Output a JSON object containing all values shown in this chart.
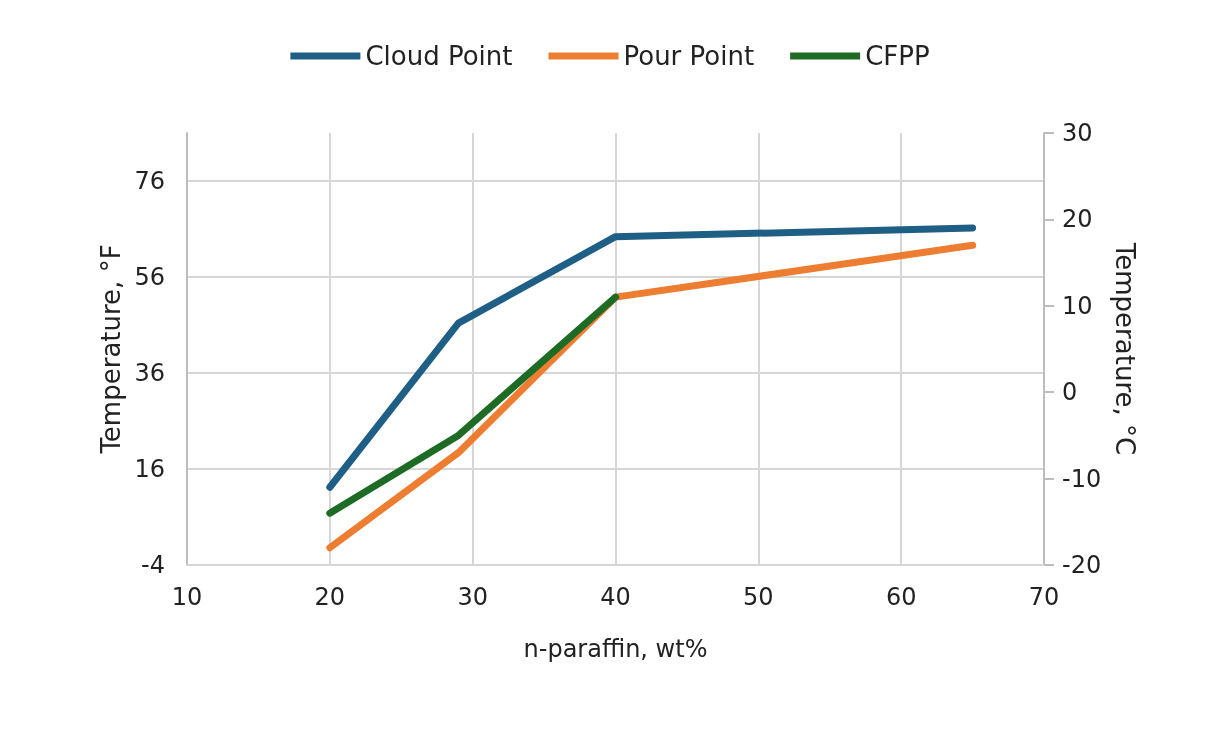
{
  "chart_data": {
    "type": "line",
    "xlabel": "n-paraffin, wt%",
    "ylabel": "Temperature, °F",
    "y2label": "Temperature, °C",
    "xlim": [
      10,
      70
    ],
    "xticks": [
      10,
      20,
      30,
      40,
      50,
      60,
      70
    ],
    "ylim": [
      -4,
      86
    ],
    "yticks": [
      -4,
      16,
      36,
      56,
      76
    ],
    "y2lim": [
      -20,
      30
    ],
    "y2ticks": [
      -20,
      -10,
      0,
      10,
      20,
      30
    ],
    "series": [
      {
        "name": "Cloud Point",
        "color": "#1f5f85",
        "axis": "y2",
        "x": [
          20,
          29,
          40,
          65
        ],
        "values": [
          -11,
          8,
          18,
          19
        ]
      },
      {
        "name": "Pour Point",
        "color": "#ed7d31",
        "axis": "y2",
        "x": [
          20,
          29,
          40,
          65
        ],
        "values": [
          -18,
          -7,
          11,
          17
        ]
      },
      {
        "name": "CFPP",
        "color": "#1e6b25",
        "axis": "y2",
        "x": [
          20,
          29,
          40
        ],
        "values": [
          -14,
          -5,
          11
        ]
      }
    ],
    "grid": true,
    "legend": "top",
    "marker": "none",
    "line_style": "solid"
  }
}
